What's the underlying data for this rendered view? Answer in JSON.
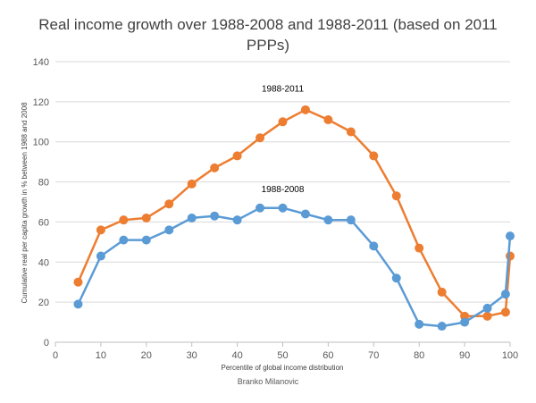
{
  "chart_data": {
    "type": "line",
    "title": "Real income growth over 1988-2008 and 1988-2011  (based on 2011 PPPs)",
    "xlabel": "Percentile of global income distribution",
    "ylabel": "Cumulative real per capita growth in % between 1988 and 2008",
    "xlim": [
      0,
      100
    ],
    "ylim": [
      0,
      140
    ],
    "xticks": [
      0,
      10,
      20,
      30,
      40,
      50,
      60,
      70,
      80,
      90,
      100
    ],
    "yticks": [
      0,
      20,
      40,
      60,
      80,
      100,
      120,
      140
    ],
    "grid": "horizontal",
    "x": [
      5,
      10,
      15,
      20,
      25,
      30,
      35,
      40,
      45,
      50,
      55,
      60,
      65,
      70,
      75,
      80,
      85,
      90,
      95,
      99,
      100
    ],
    "series": [
      {
        "name": "1988-2011",
        "color": "#ED7D31",
        "values": [
          30,
          56,
          61,
          62,
          69,
          79,
          87,
          93,
          102,
          110,
          116,
          111,
          105,
          93,
          73,
          47,
          25,
          13,
          13,
          15,
          43
        ]
      },
      {
        "name": "1988-2008",
        "color": "#5B9BD5",
        "values": [
          19,
          43,
          51,
          51,
          56,
          62,
          63,
          61,
          67,
          67,
          64,
          61,
          61,
          48,
          32,
          9,
          8,
          10,
          17,
          24,
          53
        ]
      }
    ],
    "source": "Branko Milanovic"
  }
}
